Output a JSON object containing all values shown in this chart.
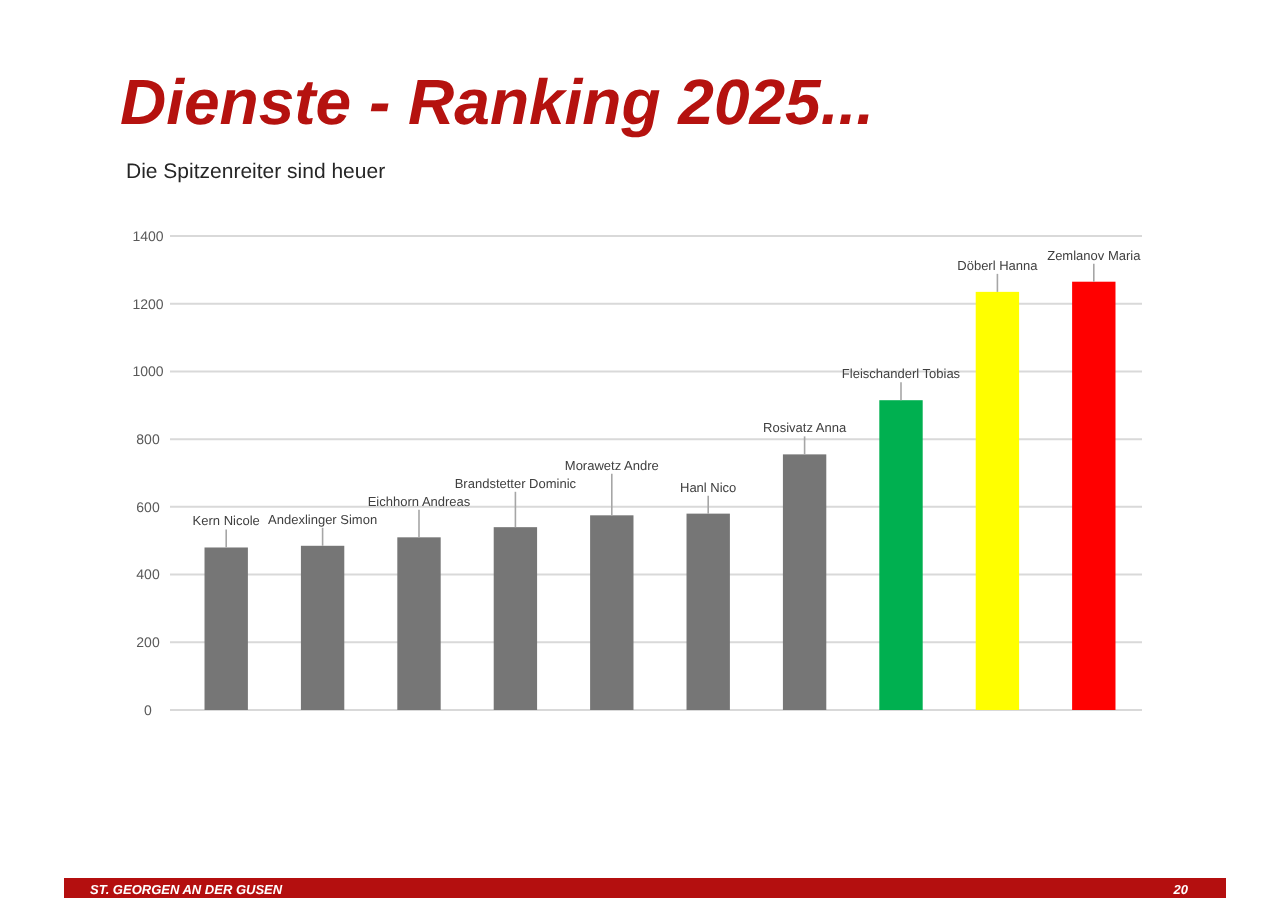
{
  "chart_data": {
    "type": "bar",
    "title": "Dienste - Ranking 2025...",
    "subtitle": "Die Spitzenreiter sind heuer",
    "categories": [
      "Kern Nicole",
      "Andexlinger Simon",
      "Eichhorn Andreas",
      "Brandstetter Dominic",
      "Morawetz Andre",
      "Hanl Nico",
      "Rosivatz Anna",
      "Fleischanderl Tobias",
      "Döberl Hanna",
      "Zemlanov Maria"
    ],
    "values": [
      480,
      485,
      510,
      540,
      575,
      580,
      755,
      915,
      1235,
      1265
    ],
    "colors": [
      "#767676",
      "#767676",
      "#767676",
      "#767676",
      "#767676",
      "#767676",
      "#767676",
      "#00b050",
      "#ffff00",
      "#ff0000"
    ],
    "ylim": [
      0,
      1400
    ],
    "yticks": [
      0,
      200,
      400,
      600,
      800,
      1000,
      1200,
      1400
    ],
    "grid": "y",
    "annotations": [
      "ST. GEORGEN AN DER GUSEN",
      "20"
    ]
  }
}
